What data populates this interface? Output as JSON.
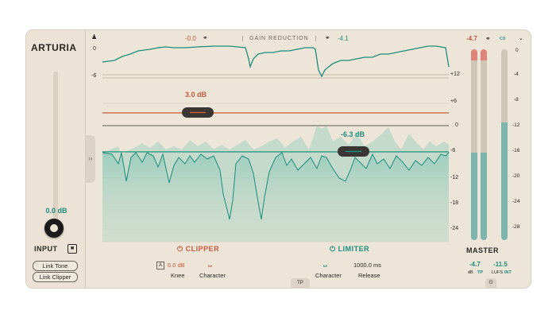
{
  "brand": "ARTURIA",
  "input": {
    "value": "0.0 dB",
    "label": "INPUT",
    "link_tone": "Link Tone",
    "link_clipper": "Link Clipper"
  },
  "gain_reduction": {
    "title": "GAIN REDUCTION",
    "left_value": "-0.0",
    "right_value": "-4.1"
  },
  "top_axis": {
    "t0": "0",
    "t1": "-6"
  },
  "right_axis": [
    "+12",
    "+6",
    "0",
    "-6",
    "-12",
    "-18",
    "-24"
  ],
  "clipper": {
    "label": "CLIPPER",
    "handle": "3.0 dB",
    "knee_value": "6.0 dB",
    "knee_label": "Knee",
    "character_label": "Character",
    "knee_badge": "A"
  },
  "limiter": {
    "label": "LIMITER",
    "handle": "-6.3 dB",
    "release_value": "1000.0 ms",
    "release_label": "Release",
    "character_label": "Character"
  },
  "tp": "TP",
  "master": {
    "label": "MASTER",
    "peak_value": "-4.7",
    "peak_unit_a": "dB",
    "peak_unit_b": "TP",
    "lufs_value": "-11.5",
    "lufs_unit_a": "LUFS",
    "lufs_unit_b": "INT",
    "link_label": "co",
    "scale": [
      "0",
      "-4",
      "-8",
      "-12",
      "-16",
      "-20",
      "-24",
      "-28"
    ]
  },
  "colors": {
    "accent_green": "#1e8c7c",
    "accent_red": "#c95a3a",
    "panel": "#ede5d8"
  }
}
